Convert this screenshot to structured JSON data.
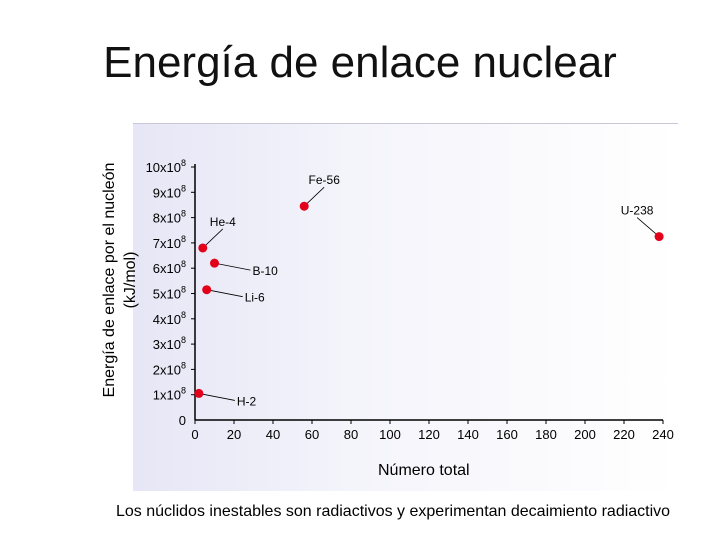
{
  "page": {
    "title": "Energía de enlace nuclear",
    "footer": "Los núclidos inestables son radiactivos y experimentan decaimiento radiactivo"
  },
  "chart_data": {
    "type": "scatter",
    "xlabel": "Número total",
    "ylabel_line1": "Energía de enlace por el nucleón",
    "ylabel_line2": "(kJ/mol)",
    "xlim": [
      0,
      240
    ],
    "ylim": [
      0,
      1000000000
    ],
    "xticks": [
      0,
      20,
      40,
      60,
      80,
      100,
      120,
      140,
      160,
      180,
      200,
      220,
      240
    ],
    "yticks": [
      {
        "value": 0,
        "mantissa": "0",
        "exp": ""
      },
      {
        "value": 100000000,
        "mantissa": "1x10",
        "exp": "8"
      },
      {
        "value": 200000000,
        "mantissa": "2x10",
        "exp": "8"
      },
      {
        "value": 300000000,
        "mantissa": "3x10",
        "exp": "8"
      },
      {
        "value": 400000000,
        "mantissa": "4x10",
        "exp": "8"
      },
      {
        "value": 500000000,
        "mantissa": "5x10",
        "exp": "8"
      },
      {
        "value": 600000000,
        "mantissa": "6x10",
        "exp": "8"
      },
      {
        "value": 700000000,
        "mantissa": "7x10",
        "exp": "8"
      },
      {
        "value": 800000000,
        "mantissa": "8x10",
        "exp": "8"
      },
      {
        "value": 900000000,
        "mantissa": "9x10",
        "exp": "8"
      },
      {
        "value": 1000000000,
        "mantissa": "10x10",
        "exp": "8"
      }
    ],
    "points": [
      {
        "label": "H-2",
        "x": 2,
        "y": 105000000,
        "label_side": "right"
      },
      {
        "label": "Li-6",
        "x": 6,
        "y": 515000000,
        "label_side": "right"
      },
      {
        "label": "B-10",
        "x": 10,
        "y": 620000000,
        "label_side": "right"
      },
      {
        "label": "He-4",
        "x": 4,
        "y": 680000000,
        "label_side": "above"
      },
      {
        "label": "Fe-56",
        "x": 56,
        "y": 845000000,
        "label_side": "above"
      },
      {
        "label": "U-238",
        "x": 238,
        "y": 725000000,
        "label_side": "above"
      }
    ],
    "grid": false,
    "marker_color": "#e3001b",
    "axis_color": "#000000"
  }
}
